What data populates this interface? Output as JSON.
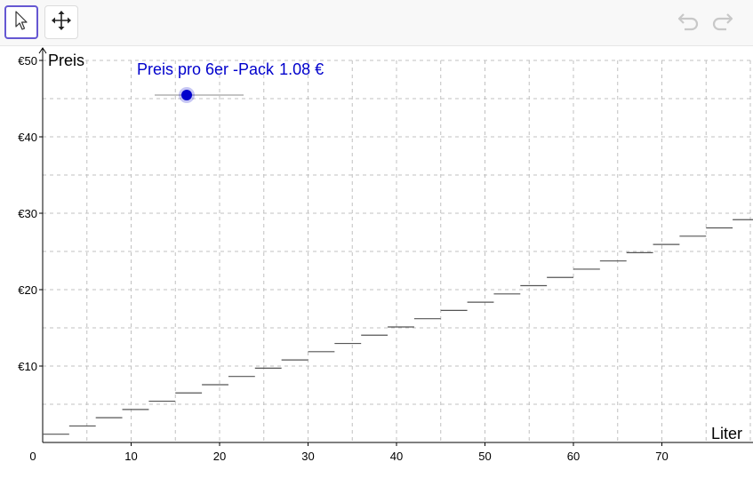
{
  "toolbar": {
    "tools": [
      {
        "name": "select",
        "icon": "arrow-pointer-icon",
        "selected": true
      },
      {
        "name": "move-graphics-view",
        "icon": "move-arrows-icon",
        "selected": false
      }
    ],
    "undo_icon": "undo-icon",
    "redo_icon": "redo-icon"
  },
  "slider": {
    "label": "Preis pro 6er -Pack",
    "value": 1.08,
    "value_text": "1.08 €",
    "color": "#0000cc"
  },
  "chart_data": {
    "type": "line",
    "subtype": "step",
    "xlabel": "Liter",
    "ylabel": "Preis",
    "xlim": [
      0,
      80
    ],
    "ylim": [
      0,
      50
    ],
    "grid": true,
    "x_ticks": [
      "0",
      "10",
      "20",
      "30",
      "40",
      "50",
      "60",
      "70"
    ],
    "y_ticks": [
      "€10",
      "€20",
      "€30",
      "€40",
      "€50"
    ],
    "step_width": 3,
    "series": [
      {
        "color": "#555555",
        "steps": [
          {
            "x_start": 0,
            "x_end": 3,
            "y": 1.08
          },
          {
            "x_start": 3,
            "x_end": 6,
            "y": 2.16
          },
          {
            "x_start": 6,
            "x_end": 9,
            "y": 3.24
          },
          {
            "x_start": 9,
            "x_end": 12,
            "y": 4.32
          },
          {
            "x_start": 12,
            "x_end": 15,
            "y": 5.4
          },
          {
            "x_start": 15,
            "x_end": 18,
            "y": 6.48
          },
          {
            "x_start": 18,
            "x_end": 21,
            "y": 7.56
          },
          {
            "x_start": 21,
            "x_end": 24,
            "y": 8.64
          },
          {
            "x_start": 24,
            "x_end": 27,
            "y": 9.72
          },
          {
            "x_start": 27,
            "x_end": 30,
            "y": 10.8
          },
          {
            "x_start": 30,
            "x_end": 33,
            "y": 11.88
          },
          {
            "x_start": 33,
            "x_end": 36,
            "y": 12.96
          },
          {
            "x_start": 36,
            "x_end": 39,
            "y": 14.04
          },
          {
            "x_start": 39,
            "x_end": 42,
            "y": 15.12
          },
          {
            "x_start": 42,
            "x_end": 45,
            "y": 16.2
          },
          {
            "x_start": 45,
            "x_end": 48,
            "y": 17.28
          },
          {
            "x_start": 48,
            "x_end": 51,
            "y": 18.36
          },
          {
            "x_start": 51,
            "x_end": 54,
            "y": 19.44
          },
          {
            "x_start": 54,
            "x_end": 57,
            "y": 20.52
          },
          {
            "x_start": 57,
            "x_end": 60,
            "y": 21.6
          },
          {
            "x_start": 60,
            "x_end": 63,
            "y": 22.68
          },
          {
            "x_start": 63,
            "x_end": 66,
            "y": 23.76
          },
          {
            "x_start": 66,
            "x_end": 69,
            "y": 24.84
          },
          {
            "x_start": 69,
            "x_end": 72,
            "y": 25.92
          },
          {
            "x_start": 72,
            "x_end": 75,
            "y": 27.0
          },
          {
            "x_start": 75,
            "x_end": 78,
            "y": 28.08
          },
          {
            "x_start": 78,
            "x_end": 81,
            "y": 29.16
          }
        ]
      }
    ]
  }
}
